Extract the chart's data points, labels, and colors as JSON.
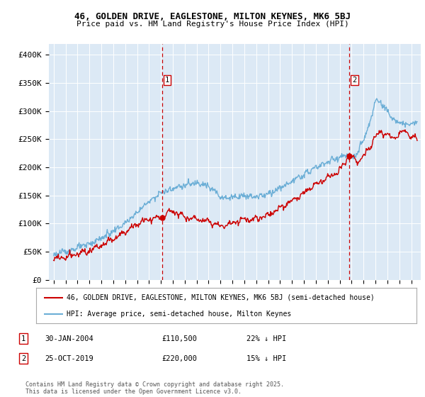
{
  "title1": "46, GOLDEN DRIVE, EAGLESTONE, MILTON KEYNES, MK6 5BJ",
  "title2": "Price paid vs. HM Land Registry's House Price Index (HPI)",
  "bg_color": "#dce9f5",
  "legend_line1": "46, GOLDEN DRIVE, EAGLESTONE, MILTON KEYNES, MK6 5BJ (semi-detached house)",
  "legend_line2": "HPI: Average price, semi-detached house, Milton Keynes",
  "annotation1": {
    "num": "1",
    "date": "30-JAN-2004",
    "price": "£110,500",
    "pct": "22% ↓ HPI"
  },
  "annotation2": {
    "num": "2",
    "date": "25-OCT-2019",
    "price": "£220,000",
    "pct": "15% ↓ HPI"
  },
  "footer": "Contains HM Land Registry data © Crown copyright and database right 2025.\nThis data is licensed under the Open Government Licence v3.0.",
  "hpi_color": "#6baed6",
  "price_color": "#cc0000",
  "dashed_color": "#cc0000",
  "ylim": [
    0,
    420000
  ],
  "yticks": [
    0,
    50000,
    100000,
    150000,
    200000,
    250000,
    300000,
    350000,
    400000
  ],
  "ytick_labels": [
    "£0",
    "£50K",
    "£100K",
    "£150K",
    "£200K",
    "£250K",
    "£300K",
    "£350K",
    "£400K"
  ],
  "marker1_x": 2004.08,
  "marker1_y": 110500,
  "marker2_x": 2019.82,
  "marker2_y": 220000,
  "xmin": 1994.6,
  "xmax": 2025.8
}
